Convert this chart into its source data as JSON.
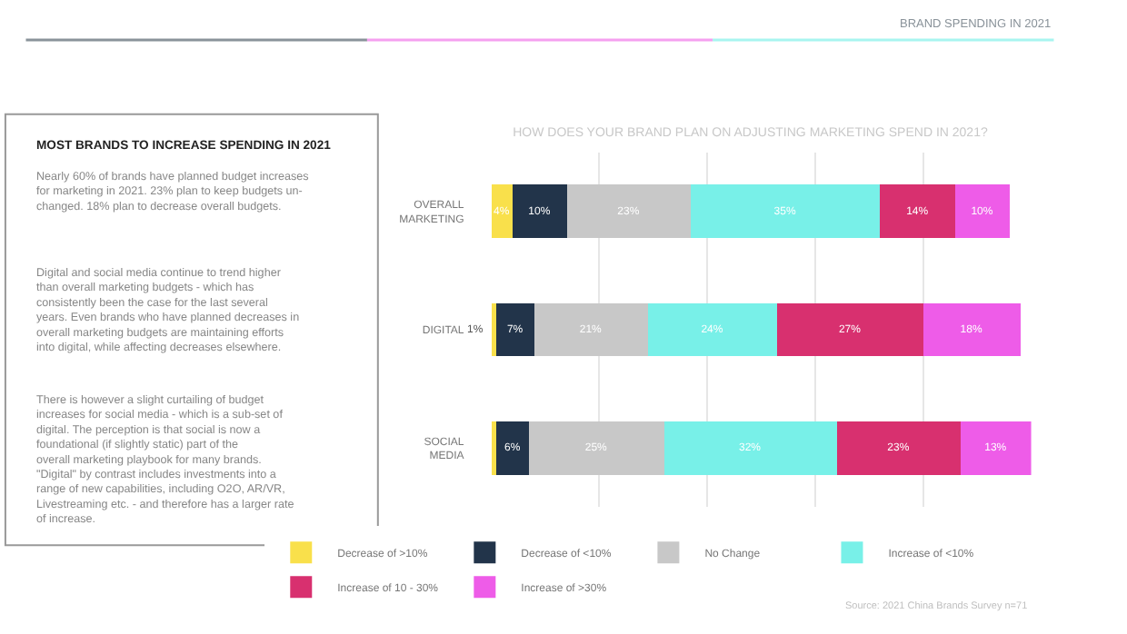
{
  "chart_data": {
    "type": "bar",
    "orientation": "horizontal",
    "stacked": true,
    "title": "HOW DOES YOUR BRAND PLAN ON ADJUSTING MARKETING SPEND IN 2021?",
    "categories": [
      "OVERALL MARKETING",
      "DIGITAL",
      "SOCIAL MEDIA"
    ],
    "series": [
      {
        "name": "Decrease of >10%",
        "color": "#f9e04b",
        "values": [
          4,
          1,
          1
        ],
        "value_labels": [
          "4%",
          "1%",
          null
        ]
      },
      {
        "name": "Decrease of <10%",
        "color": "#22344a",
        "values": [
          10,
          7,
          6
        ],
        "value_labels": [
          "10%",
          "7%",
          "6%"
        ]
      },
      {
        "name": "No Change",
        "color": "#c8c8c8",
        "values": [
          23,
          21,
          25
        ],
        "value_labels": [
          "23%",
          "21%",
          "25%"
        ]
      },
      {
        "name": "Increase of <10%",
        "color": "#78f0e8",
        "values": [
          35,
          24,
          32
        ],
        "value_labels": [
          "35%",
          "24%",
          "32%"
        ]
      },
      {
        "name": "Increase of 10 - 30%",
        "color": "#d8306f",
        "values": [
          14,
          27,
          23
        ],
        "value_labels": [
          "14%",
          "27%",
          "23%"
        ]
      },
      {
        "name": "Increase of >30%",
        "color": "#ee5ce8",
        "values": [
          10,
          18,
          13
        ],
        "value_labels": [
          "10%",
          "18%",
          "13%"
        ]
      }
    ],
    "xlim": [
      0,
      100
    ],
    "xticks": [
      {
        "value": 20,
        "label": null
      },
      {
        "value": 40,
        "label": null
      },
      {
        "value": 60,
        "label": null
      },
      {
        "value": 80,
        "label": null
      }
    ],
    "tick_labels": "y",
    "grid": "x",
    "legend": "bottom",
    "annotations": [
      "BRAND SPENDING IN 2021",
      "MOST BRANDS TO INCREASE SPENDING IN 2021",
      "Nearly 60% of brands have planned budget increases for marketing in 2021. 23% plan to keep budgets un-changed. 18% plan to decrease overall budgets.",
      "Digital and social media continue to trend higher than overall marketing budgets - which has consistently been the case for the last several years. Even brands who have planned decreases in overall marketing budgets are maintaining efforts into digital, while affecting decreases elsewhere.",
      "There is however a slight curtailing of budget increases for social media - which is a sub-set of digital. The perception is that social is now a foundational (if slightly static) part of the overall marketing playbook for many brands. \"Digital\" by contrast includes investments into a range of new capabilities, including O2O, AR/VR, Livestreaming etc. - and therefore has a larger rate of increase.",
      "Source: 2021 China Brands Survey n=71"
    ]
  }
}
